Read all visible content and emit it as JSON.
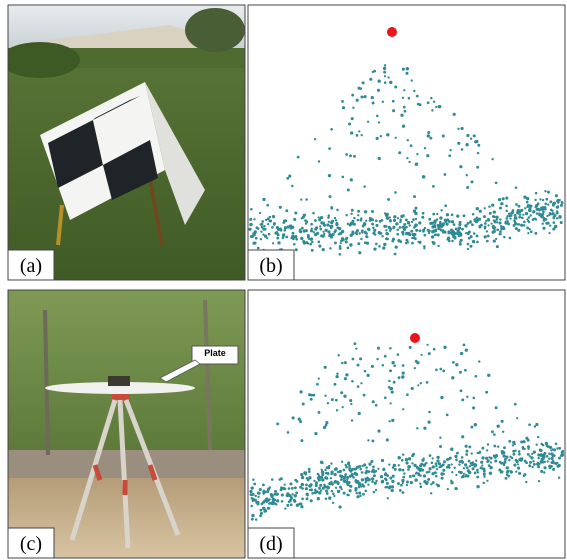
{
  "panels": [
    {
      "label": "(a)"
    },
    {
      "label": "(b)"
    },
    {
      "label": "(c)",
      "annotation": "Plate"
    },
    {
      "label": "(d)"
    }
  ]
}
